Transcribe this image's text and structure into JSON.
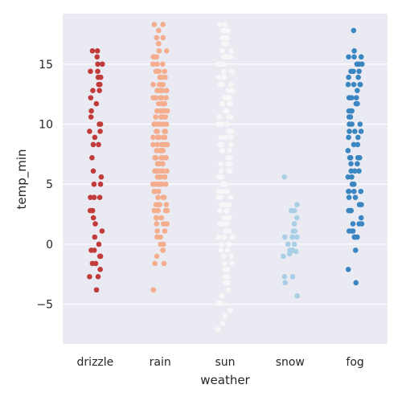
{
  "chart_data": {
    "type": "scatter",
    "subtype": "strip",
    "title": "",
    "xlabel": "weather",
    "ylabel": "temp_min",
    "categories": [
      "drizzle",
      "rain",
      "sun",
      "snow",
      "fog"
    ],
    "ylim": [
      -8.3,
      19.2
    ],
    "yticks": [
      -5,
      0,
      5,
      10,
      15
    ],
    "ytick_labels": [
      "−5",
      "0",
      "5",
      "10",
      "15"
    ],
    "grid": true,
    "legend": "none",
    "background": "#eaeaf2",
    "grid_color": "#ffffff",
    "colors": [
      "#c23b3b",
      "#f4ad8d",
      "#f7f7f7",
      "#a8cfe6",
      "#3a86c0"
    ],
    "series": [
      {
        "category": "drizzle",
        "values": [
          16.1,
          16.1,
          15.6,
          15.0,
          15.0,
          14.4,
          14.4,
          13.9,
          13.9,
          13.3,
          13.3,
          12.8,
          12.8,
          12.2,
          11.7,
          11.1,
          10.6,
          10.0,
          10.0,
          9.4,
          9.4,
          8.9,
          8.3,
          8.3,
          7.2,
          6.1,
          5.6,
          5.0,
          5.0,
          3.9,
          3.9,
          3.9,
          2.8,
          2.8,
          2.2,
          1.7,
          1.1,
          0.6,
          0.0,
          -0.5,
          -0.5,
          -1.0,
          -1.0,
          -1.6,
          -1.6,
          -2.1,
          -2.7,
          -2.7,
          -3.8
        ]
      },
      {
        "category": "rain",
        "values": [
          18.3,
          18.3,
          17.8,
          17.2,
          17.2,
          16.7,
          16.7,
          16.1,
          16.1,
          16.1,
          15.6,
          15.6,
          15.6,
          15.0,
          15.0,
          15.0,
          14.4,
          14.4,
          14.4,
          14.4,
          13.9,
          13.9,
          13.9,
          13.9,
          13.3,
          13.3,
          13.3,
          13.3,
          12.8,
          12.8,
          12.8,
          12.8,
          12.8,
          12.2,
          12.2,
          12.2,
          12.2,
          12.2,
          11.7,
          11.7,
          11.7,
          11.7,
          11.1,
          11.1,
          11.1,
          11.1,
          11.1,
          10.6,
          10.6,
          10.6,
          10.6,
          10.6,
          10.0,
          10.0,
          10.0,
          10.0,
          10.0,
          10.0,
          9.4,
          9.4,
          9.4,
          9.4,
          9.4,
          8.9,
          8.9,
          8.9,
          8.9,
          8.9,
          8.9,
          8.3,
          8.3,
          8.3,
          8.3,
          8.3,
          8.3,
          7.8,
          7.8,
          7.8,
          7.8,
          7.8,
          7.8,
          7.2,
          7.2,
          7.2,
          7.2,
          7.2,
          7.2,
          6.7,
          6.7,
          6.7,
          6.7,
          6.7,
          6.7,
          6.1,
          6.1,
          6.1,
          6.1,
          6.1,
          6.1,
          5.6,
          5.6,
          5.6,
          5.6,
          5.6,
          5.0,
          5.0,
          5.0,
          5.0,
          5.0,
          5.0,
          4.4,
          4.4,
          4.4,
          4.4,
          4.4,
          3.9,
          3.9,
          3.9,
          3.9,
          3.3,
          3.3,
          3.3,
          3.3,
          2.8,
          2.8,
          2.8,
          2.8,
          2.2,
          2.2,
          2.2,
          1.7,
          1.7,
          1.7,
          1.1,
          1.1,
          0.6,
          0.6,
          0.0,
          0.0,
          -0.5,
          -0.5,
          -1.0,
          -1.6,
          -1.6,
          -3.8
        ]
      },
      {
        "category": "sun",
        "values": [
          18.3,
          18.3,
          17.8,
          17.8,
          17.8,
          17.2,
          17.2,
          17.2,
          16.7,
          16.7,
          16.7,
          16.1,
          16.1,
          16.1,
          15.6,
          15.6,
          15.6,
          15.0,
          15.0,
          15.0,
          14.4,
          14.4,
          14.4,
          13.9,
          13.9,
          13.9,
          13.3,
          13.3,
          13.3,
          12.8,
          12.8,
          12.8,
          12.2,
          12.2,
          12.2,
          11.7,
          11.7,
          11.7,
          11.1,
          11.1,
          11.1,
          10.6,
          10.6,
          10.6,
          10.0,
          10.0,
          10.0,
          9.4,
          9.4,
          9.4,
          8.9,
          8.9,
          8.9,
          8.3,
          8.3,
          8.3,
          7.8,
          7.8,
          7.8,
          7.2,
          7.2,
          7.2,
          6.7,
          6.7,
          6.7,
          6.1,
          6.1,
          6.1,
          5.6,
          5.6,
          5.6,
          5.0,
          5.0,
          5.0,
          4.4,
          4.4,
          4.4,
          3.9,
          3.9,
          3.9,
          3.3,
          3.3,
          3.3,
          2.8,
          2.8,
          2.8,
          2.2,
          2.2,
          2.2,
          1.7,
          1.7,
          1.7,
          1.1,
          1.1,
          1.1,
          0.6,
          0.6,
          0.6,
          0.0,
          0.0,
          0.0,
          -0.5,
          -0.5,
          -1.0,
          -1.0,
          -1.6,
          -1.6,
          -2.1,
          -2.1,
          -2.7,
          -2.7,
          -3.2,
          -3.2,
          -3.8,
          -4.3,
          -4.3,
          -4.9,
          -4.9,
          -5.5,
          -6.0,
          -6.6,
          -7.1
        ]
      },
      {
        "category": "snow",
        "values": [
          5.6,
          3.3,
          2.8,
          2.8,
          2.2,
          1.7,
          1.1,
          1.1,
          0.6,
          0.6,
          0.6,
          0.6,
          0.0,
          0.0,
          -0.5,
          -0.5,
          -0.6,
          -0.8,
          -1.0,
          -2.7,
          -2.7,
          -3.2,
          -4.3
        ]
      },
      {
        "category": "fog",
        "values": [
          17.8,
          16.1,
          15.6,
          15.6,
          15.6,
          15.0,
          15.0,
          15.0,
          14.4,
          14.4,
          14.4,
          13.9,
          13.9,
          13.3,
          13.3,
          13.3,
          13.3,
          12.8,
          12.2,
          12.2,
          12.2,
          12.2,
          11.7,
          11.7,
          11.1,
          11.1,
          11.1,
          10.6,
          10.6,
          10.0,
          10.0,
          10.0,
          9.4,
          9.4,
          9.4,
          8.9,
          8.9,
          8.3,
          8.3,
          7.8,
          7.2,
          7.2,
          7.2,
          7.2,
          6.7,
          6.7,
          6.1,
          6.1,
          6.1,
          5.6,
          5.6,
          5.0,
          5.0,
          5.0,
          4.4,
          4.4,
          4.4,
          4.4,
          3.9,
          3.9,
          3.3,
          3.3,
          2.8,
          2.8,
          2.8,
          2.2,
          1.7,
          1.7,
          1.7,
          1.1,
          1.1,
          1.1,
          0.6,
          0.6,
          0.6,
          0.6,
          0.6,
          -0.5,
          -2.1,
          -3.2
        ]
      }
    ]
  }
}
